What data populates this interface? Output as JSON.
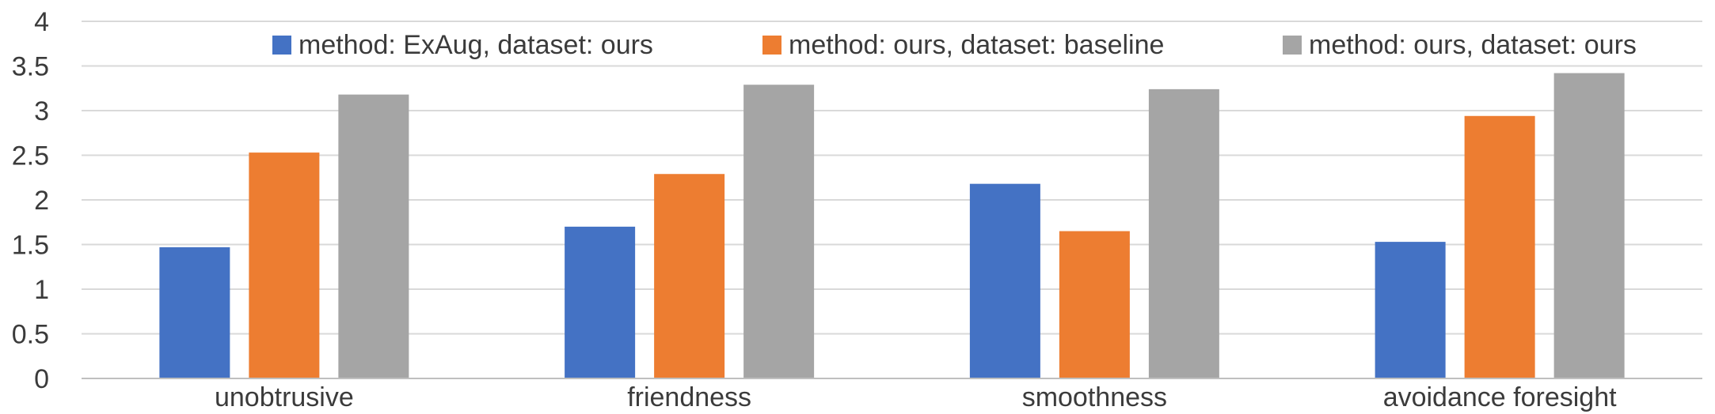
{
  "chart_data": {
    "type": "bar",
    "categories": [
      "unobtrusive",
      "friendness",
      "smoothness",
      "avoidance foresight"
    ],
    "series": [
      {
        "name": "method: ExAug, dataset: ours",
        "color": "#4472c4",
        "values": [
          1.47,
          1.7,
          2.18,
          1.53
        ]
      },
      {
        "name": "method: ours, dataset: baseline",
        "color": "#ed7d31",
        "values": [
          2.53,
          2.29,
          1.65,
          2.94
        ]
      },
      {
        "name": "method: ours, dataset: ours",
        "color": "#a5a5a5",
        "values": [
          3.18,
          3.29,
          3.24,
          3.42
        ]
      }
    ],
    "yticks": [
      "0",
      "0.5",
      "1",
      "1.5",
      "2",
      "2.5",
      "3",
      "3.5",
      "4"
    ],
    "ylim": [
      0,
      4
    ],
    "grid": true,
    "legend_position": "top",
    "title": "",
    "xlabel": "",
    "ylabel": ""
  }
}
